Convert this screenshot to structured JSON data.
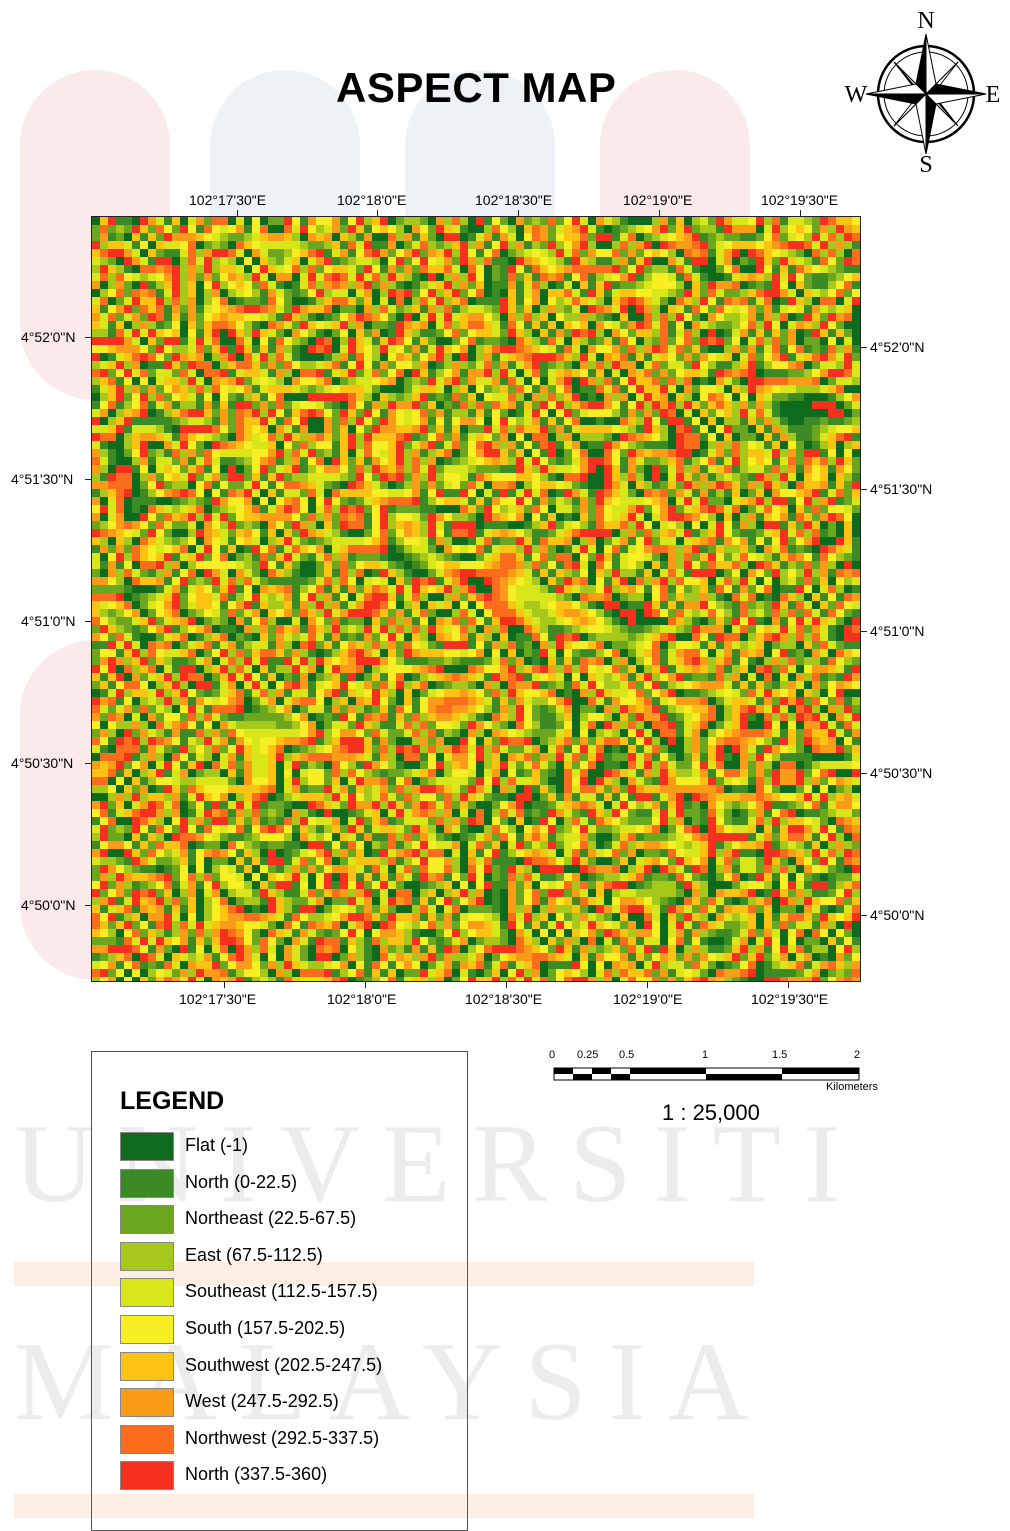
{
  "map": {
    "title": "ASPECT MAP",
    "compass": {
      "n": "N",
      "s": "S",
      "e": "E",
      "w": "W"
    },
    "coords": {
      "top": [
        "102°17'30\"E",
        "102°18'0\"E",
        "102°18'30\"E",
        "102°19'0\"E",
        "102°19'30\"E"
      ],
      "bottom": [
        "102°17'30\"E",
        "102°18'0\"E",
        "102°18'30\"E",
        "102°19'0\"E",
        "102°19'30\"E"
      ],
      "left": [
        "4°52'0\"N",
        "4°51'30\"N",
        "4°51'0\"N",
        "4°50'30\"N",
        "4°50'0\"N"
      ],
      "right": [
        "4°52'0\"N",
        "4°51'30\"N",
        "4°51'0\"N",
        "4°50'30\"N",
        "4°50'0\"N"
      ]
    }
  },
  "legend": {
    "title": "LEGEND",
    "items": [
      {
        "label": "Flat (-1)",
        "color": "#0e6a1c"
      },
      {
        "label": "North (0-22.5)",
        "color": "#3c8a23"
      },
      {
        "label": "Northeast (22.5-67.5)",
        "color": "#6aa61e"
      },
      {
        "label": "East (67.5-112.5)",
        "color": "#a6c81a"
      },
      {
        "label": "Southeast (112.5-157.5)",
        "color": "#d9e619"
      },
      {
        "label": "South (157.5-202.5)",
        "color": "#f7ee23"
      },
      {
        "label": "Southwest (202.5-247.5)",
        "color": "#fcc313"
      },
      {
        "label": "West (247.5-292.5)",
        "color": "#fb9c19"
      },
      {
        "label": "Northwest (292.5-337.5)",
        "color": "#fb6d1c"
      },
      {
        "label": "North (337.5-360)",
        "color": "#f5301e"
      }
    ]
  },
  "scale": {
    "ticks": [
      "0",
      "0.25",
      "0.5",
      "1",
      "1.5",
      "2"
    ],
    "unit": "Kilometers",
    "ratio": "1 : 25,000"
  },
  "watermark": {
    "line1": "UNIVERSITI",
    "line2": "MALAYSIA"
  }
}
